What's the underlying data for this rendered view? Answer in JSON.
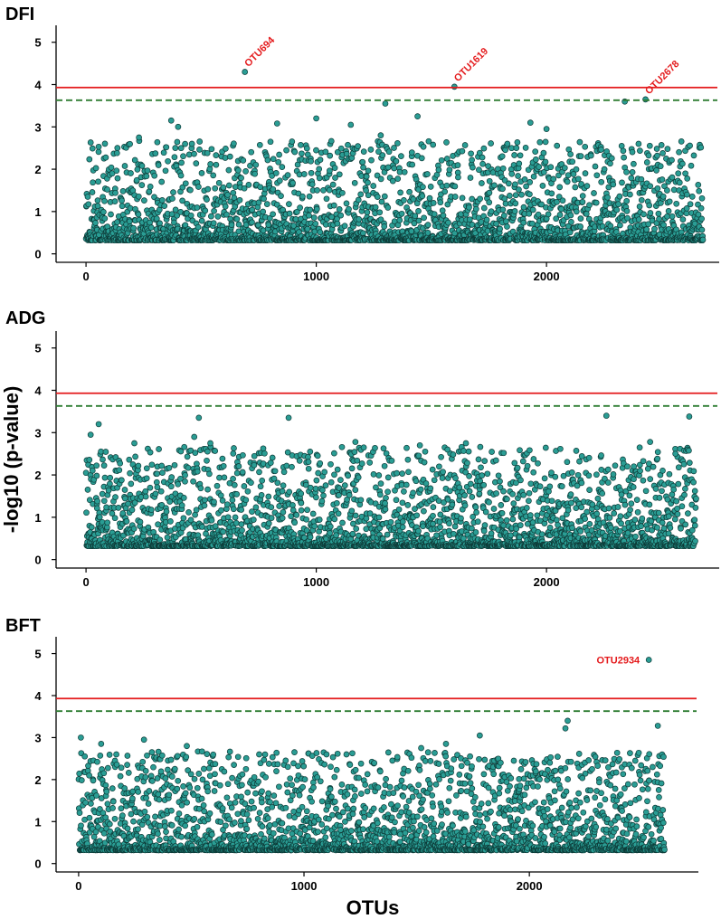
{
  "chart_data": [
    {
      "type": "scatter",
      "title": "DFI",
      "xlabel": "",
      "ylabel": "-log10 (p-value)",
      "xlim": [
        -130,
        2750
      ],
      "ylim": [
        -0.2,
        5.4
      ],
      "x_ticks": [
        0,
        1000,
        2000
      ],
      "y_ticks": [
        0,
        1,
        2,
        3,
        4,
        5
      ],
      "threshold_solid": 3.93,
      "threshold_dashed": 3.63,
      "colors": {
        "point_fill": "#2a9d94",
        "solid_line": "#e41a1c",
        "dashed_line": "#2e7d32"
      },
      "n_points": 2680,
      "seed": 11,
      "highlights": [
        {
          "x": 690,
          "y": 4.3,
          "label": "OTU694"
        },
        {
          "x": 1600,
          "y": 3.95,
          "label": "OTU1619"
        },
        {
          "x": 2430,
          "y": 3.65,
          "label": "OTU2678"
        }
      ],
      "notable": [
        {
          "x": 370,
          "y": 3.15
        },
        {
          "x": 400,
          "y": 3.0
        },
        {
          "x": 830,
          "y": 3.08
        },
        {
          "x": 1000,
          "y": 3.2
        },
        {
          "x": 1150,
          "y": 3.05
        },
        {
          "x": 1300,
          "y": 3.55
        },
        {
          "x": 1440,
          "y": 3.25
        },
        {
          "x": 1280,
          "y": 2.8
        },
        {
          "x": 1930,
          "y": 3.1
        },
        {
          "x": 2000,
          "y": 2.95
        },
        {
          "x": 2340,
          "y": 3.6
        },
        {
          "x": 230,
          "y": 2.75
        },
        {
          "x": 1830,
          "y": 2.6
        },
        {
          "x": 460,
          "y": 2.6
        }
      ]
    },
    {
      "type": "scatter",
      "title": "ADG",
      "xlabel": "",
      "ylabel": "-log10 (p-value)",
      "xlim": [
        -130,
        2750
      ],
      "ylim": [
        -0.2,
        5.4
      ],
      "x_ticks": [
        0,
        1000,
        2000
      ],
      "y_ticks": [
        0,
        1,
        2,
        3,
        4,
        5
      ],
      "threshold_solid": 3.93,
      "threshold_dashed": 3.63,
      "colors": {
        "point_fill": "#2a9d94",
        "solid_line": "#e41a1c",
        "dashed_line": "#2e7d32"
      },
      "n_points": 2650,
      "seed": 29,
      "highlights": [],
      "notable": [
        {
          "x": 20,
          "y": 2.95
        },
        {
          "x": 55,
          "y": 3.2
        },
        {
          "x": 490,
          "y": 3.35
        },
        {
          "x": 470,
          "y": 2.9
        },
        {
          "x": 880,
          "y": 3.35
        },
        {
          "x": 2260,
          "y": 3.4
        },
        {
          "x": 2620,
          "y": 3.38
        },
        {
          "x": 2450,
          "y": 2.78
        },
        {
          "x": 1170,
          "y": 2.78
        },
        {
          "x": 1650,
          "y": 2.75
        },
        {
          "x": 540,
          "y": 2.75
        },
        {
          "x": 210,
          "y": 2.75
        },
        {
          "x": 1570,
          "y": 2.6
        },
        {
          "x": 1450,
          "y": 2.7
        },
        {
          "x": 2560,
          "y": 2.5
        }
      ]
    },
    {
      "type": "scatter",
      "title": "BFT",
      "xlabel": "OTUs",
      "ylabel": "-log10 (p-value)",
      "xlim": [
        -100,
        2750
      ],
      "ylim": [
        -0.2,
        5.4
      ],
      "x_ticks": [
        0,
        1000,
        2000
      ],
      "y_ticks": [
        0,
        1,
        2,
        3,
        4,
        5
      ],
      "threshold_solid": 3.93,
      "threshold_dashed": 3.63,
      "colors": {
        "point_fill": "#2a9d94",
        "solid_line": "#e41a1c",
        "dashed_line": "#2e7d32"
      },
      "n_points": 2600,
      "seed": 47,
      "highlights": [
        {
          "x": 2530,
          "y": 4.85,
          "label": "OTU2934"
        }
      ],
      "notable": [
        {
          "x": 10,
          "y": 3.0
        },
        {
          "x": 1780,
          "y": 3.05
        },
        {
          "x": 2170,
          "y": 3.4
        },
        {
          "x": 2160,
          "y": 3.22
        },
        {
          "x": 2570,
          "y": 3.28
        },
        {
          "x": 1630,
          "y": 2.85
        },
        {
          "x": 1520,
          "y": 2.75
        },
        {
          "x": 100,
          "y": 2.85
        },
        {
          "x": 290,
          "y": 2.95
        },
        {
          "x": 480,
          "y": 2.8
        },
        {
          "x": 1100,
          "y": 2.6
        },
        {
          "x": 2470,
          "y": 2.45
        }
      ]
    }
  ]
}
